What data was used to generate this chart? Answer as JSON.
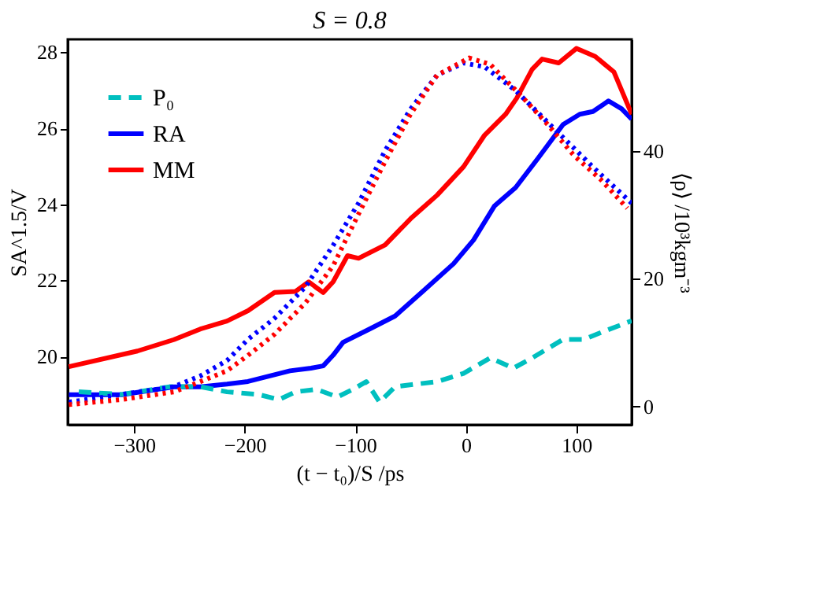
{
  "chart_data": {
    "type": "line",
    "title": "S = 0.8",
    "xlabel": "(t − t₀)/S    /ps",
    "ylabel": "SA^1.5/V",
    "y2label": "⟨ρ⟩ /10³kgm⁻³",
    "xlim": [
      -360,
      150
    ],
    "xticks": [
      -300,
      -200,
      -100,
      0,
      100
    ],
    "ylim": [
      18.2,
      28.34
    ],
    "yticks": [
      20,
      22,
      24,
      26,
      28
    ],
    "y2lim": [
      -2.85,
      57.4
    ],
    "y2ticks": [
      0,
      20,
      40
    ],
    "grid": false,
    "legend": "top left",
    "marker": "none",
    "series": [
      {
        "name": "P₀",
        "color": "#00bfbf",
        "axis": "y2",
        "line_style": "dashed",
        "x": [
          -350,
          -311,
          -268,
          -240,
          -216,
          -188,
          -169,
          -154,
          -135,
          -116,
          -102,
          -90,
          -78,
          -64,
          -26,
          -2,
          22,
          43,
          60,
          88,
          107,
          124,
          150
        ],
        "values": [
          2.3,
          1.9,
          3.1,
          3.1,
          2.3,
          1.9,
          1.1,
          2.3,
          2.7,
          1.5,
          2.7,
          3.9,
          0.7,
          3.1,
          3.9,
          5.2,
          7.6,
          6.0,
          7.6,
          10.5,
          10.5,
          11.7,
          13.4
        ]
      },
      {
        "name": "RA",
        "color": "#0000ff",
        "line_style": "solid",
        "x": [
          -359,
          -311,
          -264,
          -240,
          -216,
          -197,
          -178,
          -159,
          -140,
          -129,
          -120,
          -111,
          -87,
          -64,
          -40,
          -11,
          7,
          26,
          45,
          65,
          88,
          103,
          115,
          129,
          141,
          150
        ],
        "values": [
          18.99,
          18.99,
          19.2,
          19.2,
          19.27,
          19.34,
          19.48,
          19.62,
          19.69,
          19.75,
          20.03,
          20.37,
          20.72,
          21.06,
          21.68,
          22.44,
          23.06,
          23.96,
          24.44,
          25.2,
          26.1,
          26.37,
          26.44,
          26.72,
          26.51,
          26.24
        ]
      },
      {
        "name": "MM",
        "color": "#ff0000",
        "line_style": "solid",
        "x": [
          -359,
          -297,
          -264,
          -240,
          -216,
          -197,
          -173,
          -154,
          -142,
          -129,
          -120,
          -107,
          -97,
          -73,
          -50,
          -26,
          -2,
          17,
          36,
          46,
          60,
          69,
          84,
          100,
          117,
          134,
          150
        ],
        "values": [
          19.73,
          20.14,
          20.44,
          20.72,
          20.93,
          21.2,
          21.68,
          21.71,
          21.96,
          21.68,
          21.96,
          22.65,
          22.58,
          22.93,
          23.62,
          24.24,
          24.99,
          25.82,
          26.37,
          26.79,
          27.55,
          27.82,
          27.72,
          28.1,
          27.89,
          27.48,
          26.37
        ]
      },
      {
        "color": "#0000ff",
        "axis": "y2",
        "line_style": "dotted",
        "x": [
          -359,
          -311,
          -264,
          -240,
          -216,
          -197,
          -173,
          -145,
          -120,
          -97,
          -73,
          -50,
          -26,
          -2,
          17,
          45,
          69,
          93,
          117,
          150
        ],
        "values": [
          0.7,
          1.9,
          3.1,
          4.8,
          7.2,
          10.5,
          13.8,
          18.7,
          25.2,
          31.8,
          40.0,
          46.5,
          51.8,
          53.7,
          53.1,
          49.4,
          45.3,
          41.2,
          37.1,
          31.8
        ]
      },
      {
        "color": "#ff0000",
        "axis": "y2",
        "line_style": "dotted",
        "x": [
          -359,
          -311,
          -264,
          -240,
          -216,
          -197,
          -173,
          -145,
          -120,
          -97,
          -73,
          -50,
          -26,
          3,
          22,
          50,
          74,
          98,
          122,
          146
        ],
        "values": [
          0.3,
          1.1,
          2.3,
          3.9,
          5.6,
          8.0,
          11.3,
          16.2,
          22.0,
          30.1,
          38.3,
          45.7,
          51.8,
          54.5,
          53.5,
          48.6,
          44.1,
          39.2,
          35.5,
          31.0
        ]
      }
    ]
  }
}
